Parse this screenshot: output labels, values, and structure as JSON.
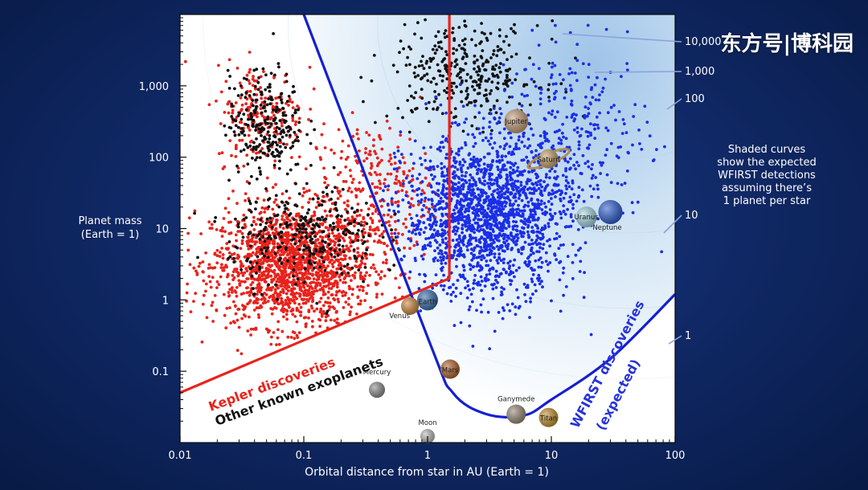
{
  "watermark": "东方号|博科园",
  "chart_data": {
    "type": "scatter",
    "title": "",
    "xlabel": "Orbital distance from star in AU (Earth = 1)",
    "ylabel": [
      "Planet mass",
      "(Earth = 1)"
    ],
    "xscale": "log",
    "yscale": "log",
    "xlim": [
      0.01,
      100
    ],
    "ylim": [
      0.01,
      10000
    ],
    "x_ticks": [
      {
        "value": 0.01,
        "label": "0.01"
      },
      {
        "value": 0.1,
        "label": "0.1"
      },
      {
        "value": 1,
        "label": "1"
      },
      {
        "value": 10,
        "label": "10"
      },
      {
        "value": 100,
        "label": "100"
      }
    ],
    "y_ticks": [
      {
        "value": 0.1,
        "label": "0.1"
      },
      {
        "value": 1,
        "label": "1"
      },
      {
        "value": 10,
        "label": "10"
      },
      {
        "value": 100,
        "label": "100"
      },
      {
        "value": 1000,
        "label": "1,000"
      }
    ],
    "grid": false,
    "series": [
      {
        "name": "Kepler discoveries",
        "color": "#e8231c",
        "clusters": [
          {
            "x": 0.08,
            "y": 3,
            "sx": 0.32,
            "sy": 0.42,
            "n": 1700
          },
          {
            "x": 0.045,
            "y": 400,
            "sx": 0.18,
            "sy": 0.35,
            "n": 220
          },
          {
            "x": 0.35,
            "y": 30,
            "sx": 0.25,
            "sy": 0.5,
            "n": 300
          }
        ]
      },
      {
        "name": "Other known exoplanets",
        "color": "#111111",
        "clusters": [
          {
            "x": 0.05,
            "y": 300,
            "sx": 0.15,
            "sy": 0.35,
            "n": 260
          },
          {
            "x": 0.1,
            "y": 8,
            "sx": 0.3,
            "sy": 0.35,
            "n": 320
          },
          {
            "x": 2.0,
            "y": 1500,
            "sx": 0.3,
            "sy": 0.35,
            "n": 340
          }
        ]
      },
      {
        "name": "WFIRST discoveries (expected)",
        "color": "#1a2ee6",
        "clusters": [
          {
            "x": 3,
            "y": 15,
            "sx": 0.33,
            "sy": 0.55,
            "n": 1800
          },
          {
            "x": 15,
            "y": 200,
            "sx": 0.3,
            "sy": 0.6,
            "n": 300
          }
        ]
      }
    ],
    "kepler_boundary": [
      [
        0.01,
        0.05
      ],
      [
        1.5,
        2
      ],
      [
        1.5,
        10000
      ]
    ],
    "wfirst_boundary": [
      [
        0.1,
        10000
      ],
      [
        1,
        0.3
      ],
      [
        1.6,
        0.05
      ],
      [
        3,
        0.025
      ],
      [
        6,
        0.024
      ],
      [
        10,
        0.04
      ],
      [
        30,
        0.15
      ],
      [
        100,
        1.2
      ]
    ],
    "solar_system": [
      {
        "name": "Mercury",
        "x": 0.39,
        "y": 0.055,
        "color": "#8e8e8e"
      },
      {
        "name": "Venus",
        "x": 0.72,
        "y": 0.82,
        "color": "#d08a3c"
      },
      {
        "name": "Earth",
        "x": 1.0,
        "y": 1.0,
        "color": "#3a6fb0"
      },
      {
        "name": "Moon",
        "x": 1.0,
        "y": 0.0123,
        "color": "#bdbdbd"
      },
      {
        "name": "Mars",
        "x": 1.52,
        "y": 0.107,
        "color": "#b5652b"
      },
      {
        "name": "Jupiter",
        "x": 5.2,
        "y": 318,
        "color": "#c9a07a"
      },
      {
        "name": "Saturn",
        "x": 9.5,
        "y": 95,
        "color": "#c8a56a"
      },
      {
        "name": "Uranus",
        "x": 19.2,
        "y": 14.5,
        "color": "#a9dbe8"
      },
      {
        "name": "Neptune",
        "x": 30,
        "y": 17,
        "color": "#2f5fd6"
      },
      {
        "name": "Ganymede",
        "x": 5.2,
        "y": 0.025,
        "color": "#9a8b78"
      },
      {
        "name": "Titan",
        "x": 9.5,
        "y": 0.0225,
        "color": "#c7952f"
      }
    ],
    "contour_labels": [
      "10,000",
      "1,000",
      "100",
      "10",
      "1"
    ],
    "annotations": {
      "kepler": "Kepler discoveries",
      "other": "Other known exoplanets",
      "wfirst_line1": "WFIRST discoveries",
      "wfirst_line2": "(expected)",
      "shaded_note": [
        "Shaded curves",
        "show the expected",
        "WFIRST detections",
        "assuming there’s",
        "1 planet per star"
      ]
    }
  }
}
